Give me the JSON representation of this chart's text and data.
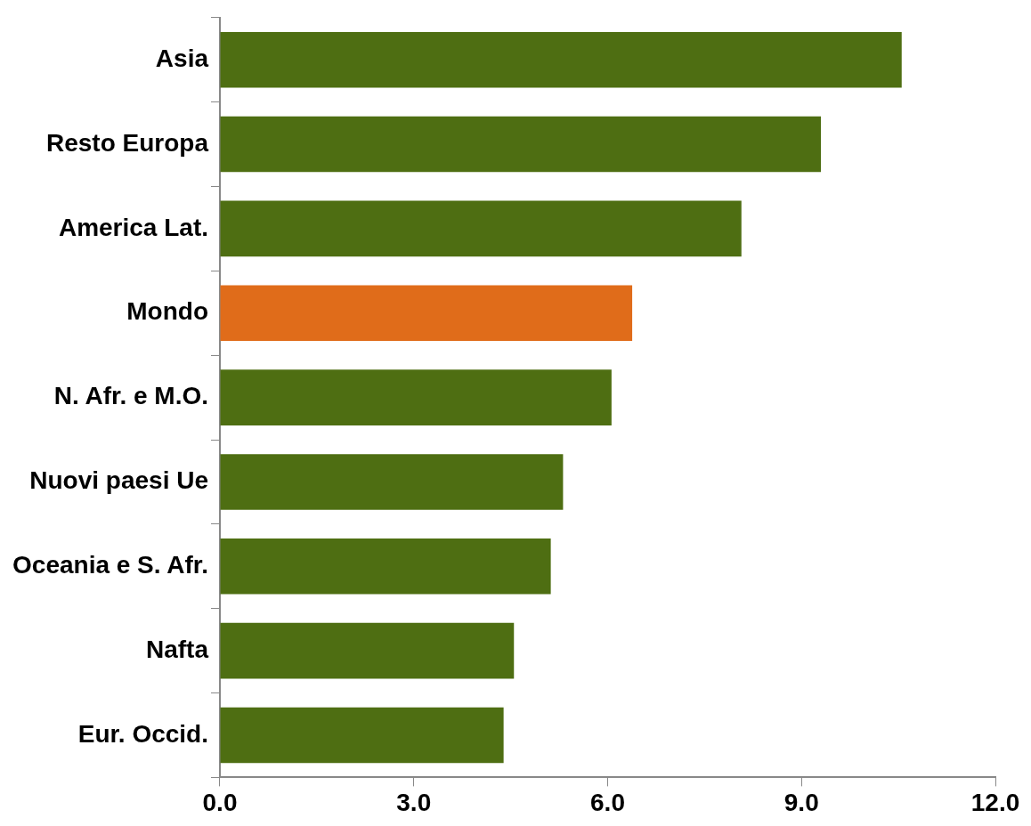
{
  "chart_data": {
    "type": "bar",
    "orientation": "horizontal",
    "categories": [
      "Asia",
      "Resto Europa",
      "America Lat.",
      "Mondo",
      "N. Afr. e M.O.",
      "Nuovi paesi Ue",
      "Oceania e S. Afr.",
      "Nafta",
      "Eur. Occid."
    ],
    "values": [
      10.55,
      9.3,
      8.07,
      6.38,
      6.06,
      5.31,
      5.12,
      4.55,
      4.39
    ],
    "colors": [
      "#4e6e12",
      "#4e6e12",
      "#4e6e12",
      "#e06c1a",
      "#4e6e12",
      "#4e6e12",
      "#4e6e12",
      "#4e6e12",
      "#4e6e12"
    ],
    "xlim": [
      0,
      12
    ],
    "xticks": [
      {
        "value": 0,
        "label": "0.0"
      },
      {
        "value": 3,
        "label": "3.0"
      },
      {
        "value": 6,
        "label": "6.0"
      },
      {
        "value": 9,
        "label": "9.0"
      },
      {
        "value": 12,
        "label": "12.0"
      }
    ],
    "grid": false,
    "legend": false
  }
}
